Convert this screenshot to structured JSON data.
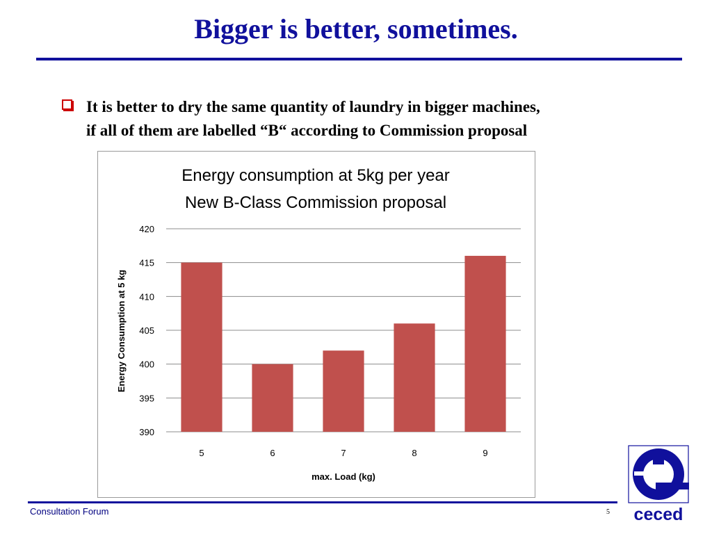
{
  "slide": {
    "title": "Bigger is better, sometimes.",
    "bullet_lines": [
      "It is better to dry the same quantity of laundry in bigger machines,",
      "if all of them are labelled “B“ according to Commission proposal"
    ]
  },
  "chart_data": {
    "type": "bar",
    "title_lines": [
      "Energy consumption at 5kg per year",
      "New B-Class Commission proposal"
    ],
    "categories": [
      "5",
      "6",
      "7",
      "8",
      "9"
    ],
    "values": [
      415,
      400,
      402,
      406,
      416
    ],
    "xlabel": "max. Load (kg)",
    "ylabel": "Energy Consumption at 5 kg",
    "ylim": [
      390,
      420
    ],
    "yticks": [
      390,
      395,
      400,
      405,
      410,
      415,
      420
    ],
    "grid": true,
    "legend": "none",
    "bar_color": "#c0504d"
  },
  "footer": {
    "left_text": "Consultation Forum",
    "page_number": "5"
  },
  "logo": {
    "text": "ceced",
    "color": "#10109c"
  }
}
